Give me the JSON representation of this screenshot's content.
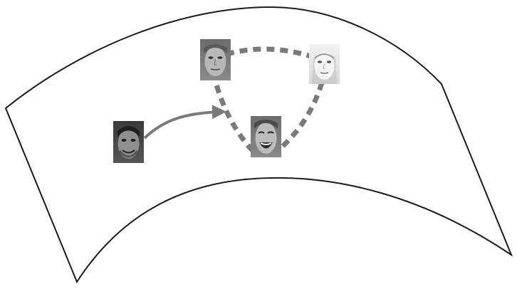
{
  "diagram": {
    "description_visible_text": "",
    "colors": {
      "background": "#ffffff",
      "manifold_outline": "#1a1a1a",
      "connector": "#7a7a7a"
    },
    "nodes": [
      {
        "id": "face-left",
        "icon": "face-thumbnail",
        "tone": "dark",
        "expression": "smile"
      },
      {
        "id": "face-top",
        "icon": "face-thumbnail",
        "tone": "medium",
        "expression": "neutral"
      },
      {
        "id": "face-right",
        "icon": "face-thumbnail",
        "tone": "light",
        "expression": "neutral"
      },
      {
        "id": "face-bottom",
        "icon": "face-thumbnail",
        "tone": "medium",
        "expression": "laugh"
      }
    ],
    "edges": [
      {
        "from": "face-left",
        "to": "face-top-bottom-path",
        "style": "solid-arrow"
      },
      {
        "from": "face-top",
        "to": "face-right",
        "style": "dashed"
      },
      {
        "from": "face-right",
        "to": "face-bottom",
        "style": "dashed"
      },
      {
        "from": "face-bottom",
        "to": "face-top",
        "style": "dashed"
      }
    ]
  }
}
